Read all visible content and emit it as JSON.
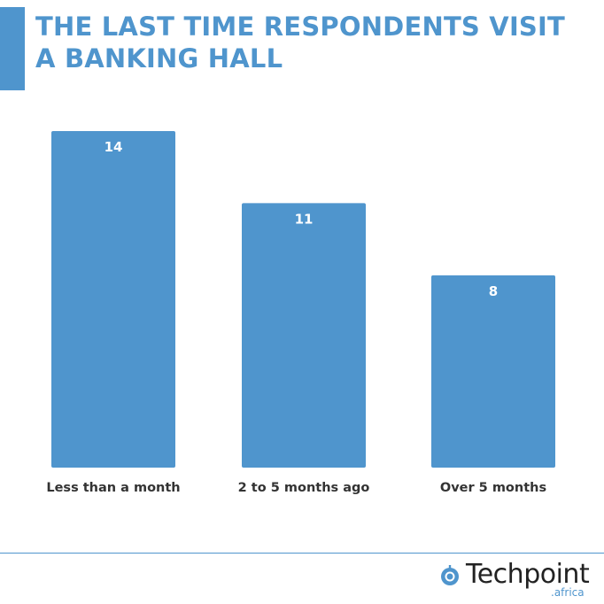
{
  "header": {
    "title_line1": "THE LAST TIME RESPONDENTS VISIT",
    "title_line2": "A BANKING HALL"
  },
  "colors": {
    "accent": "#4f95cd",
    "bar": "#4f95cd",
    "label_text": "#333333",
    "bar_label_text": "#ffffff"
  },
  "chart_data": {
    "type": "bar",
    "title": "THE LAST TIME RESPONDENTS VISIT A BANKING HALL",
    "categories": [
      "Less than a month",
      "2 to 5 months ago",
      "Over 5 months"
    ],
    "values": [
      14,
      11,
      8
    ],
    "xlabel": "",
    "ylabel": "",
    "ylim": [
      0,
      14
    ],
    "grid": false,
    "data_labels": true
  },
  "branding": {
    "logo_word": "Techpoint",
    "logo_sub": ".africa",
    "logo_icon": "techpoint-logo-icon"
  }
}
